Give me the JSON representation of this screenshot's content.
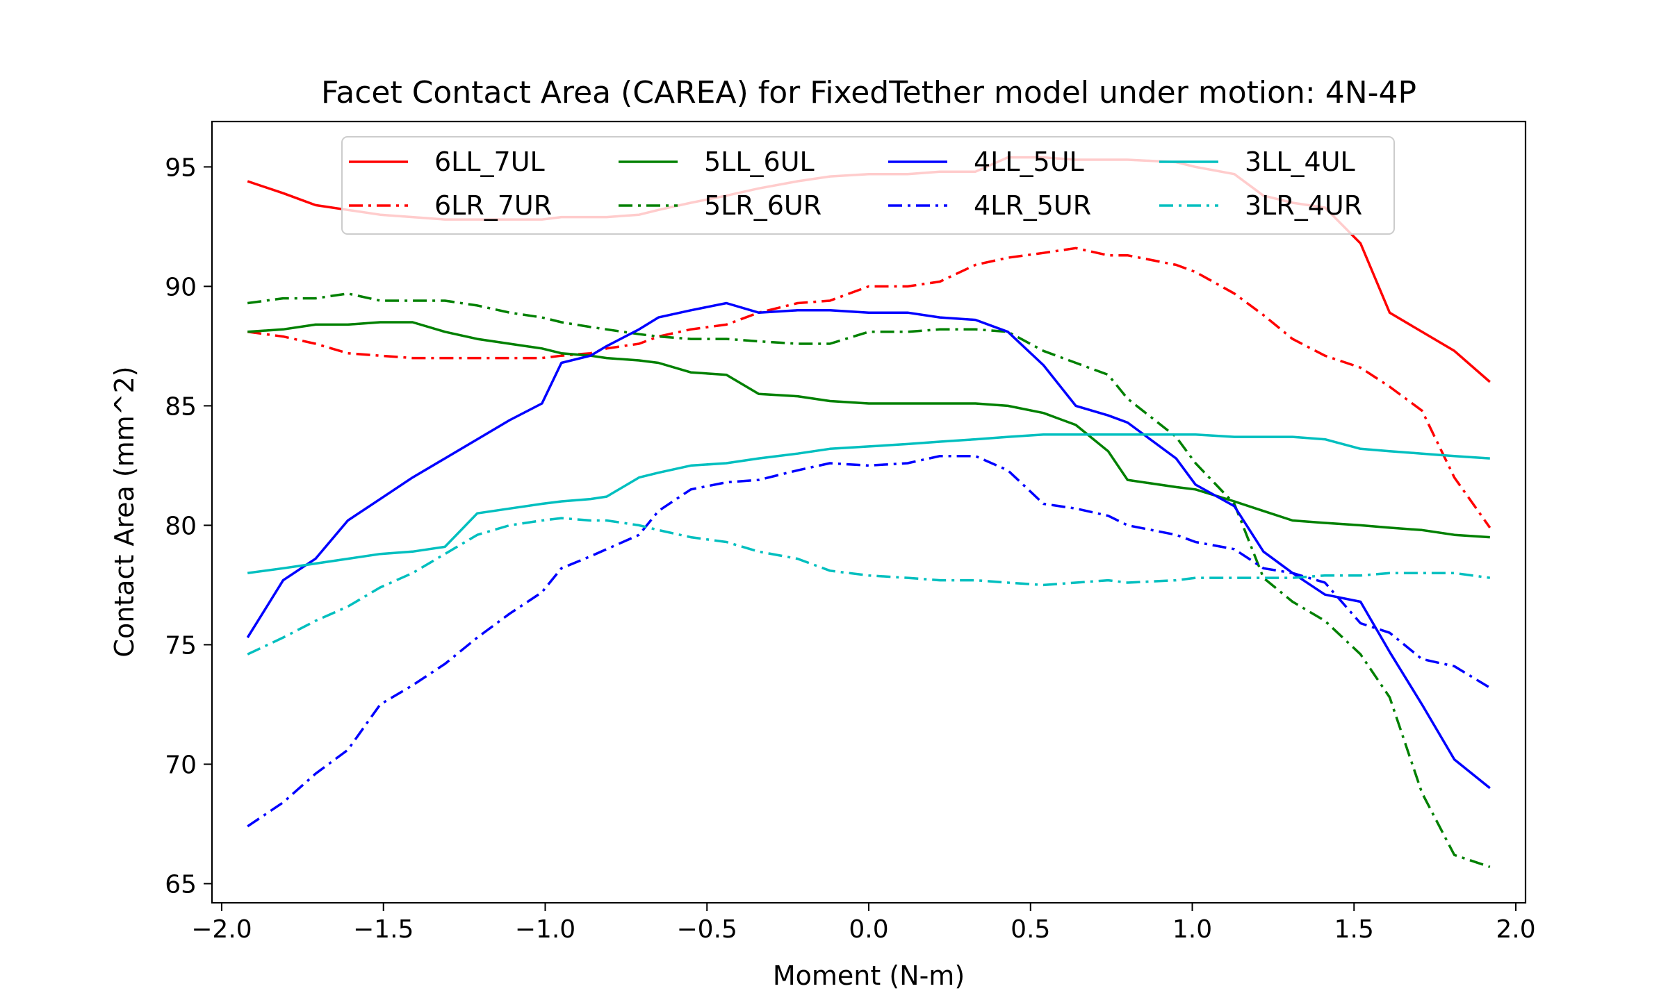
{
  "chart_data": {
    "type": "line",
    "title": "Facet Contact Area (CAREA) for FixedTether model under motion: 4N-4P",
    "xlabel": "Moment (N-m)",
    "ylabel": "Contact Area (mm^2)",
    "xlim": [
      -2.03,
      2.03
    ],
    "ylim": [
      64.2,
      96.9
    ],
    "xticks": [
      -2.0,
      -1.5,
      -1.0,
      -0.5,
      0.0,
      0.5,
      1.0,
      1.5,
      2.0
    ],
    "xtick_labels": [
      "−2.0",
      "−1.5",
      "−1.0",
      "−0.5",
      "0.0",
      "0.5",
      "1.0",
      "1.5",
      "2.0"
    ],
    "yticks": [
      65,
      70,
      75,
      80,
      85,
      90,
      95
    ],
    "ytick_labels": [
      "65",
      "70",
      "75",
      "80",
      "85",
      "90",
      "95"
    ],
    "grid": false,
    "legend": {
      "placement": "upper-center",
      "columns": 4
    },
    "x": [
      -1.92,
      -1.81,
      -1.71,
      -1.61,
      -1.51,
      -1.41,
      -1.31,
      -1.21,
      -1.11,
      -1.01,
      -0.95,
      -0.86,
      -0.81,
      -0.71,
      -0.65,
      -0.55,
      -0.44,
      -0.34,
      -0.22,
      -0.12,
      0.0,
      0.12,
      0.22,
      0.33,
      0.43,
      0.54,
      0.64,
      0.74,
      0.8,
      0.95,
      1.01,
      1.13,
      1.22,
      1.31,
      1.41,
      1.52,
      1.61,
      1.71,
      1.81,
      1.92
    ],
    "series": [
      {
        "name": "6LL_7UL",
        "color": "#ff0000",
        "dash": "solid",
        "values": [
          94.4,
          93.9,
          93.4,
          93.2,
          93.0,
          92.9,
          92.8,
          92.8,
          92.8,
          92.8,
          92.9,
          92.9,
          92.9,
          93.0,
          93.2,
          93.5,
          93.8,
          94.1,
          94.4,
          94.6,
          94.7,
          94.7,
          94.8,
          94.8,
          95.4,
          95.4,
          95.3,
          95.3,
          95.3,
          95.2,
          95.0,
          94.7,
          93.8,
          93.5,
          93.3,
          91.8,
          88.9,
          88.1,
          87.3,
          86.0
        ]
      },
      {
        "name": "6LR_7UR",
        "color": "#ff0000",
        "dash": "dashdot",
        "values": [
          88.1,
          87.9,
          87.6,
          87.2,
          87.1,
          87.0,
          87.0,
          87.0,
          87.0,
          87.0,
          87.1,
          87.2,
          87.4,
          87.6,
          87.9,
          88.2,
          88.4,
          88.9,
          89.3,
          89.4,
          90.0,
          90.0,
          90.2,
          90.9,
          91.2,
          91.4,
          91.6,
          91.3,
          91.3,
          90.9,
          90.6,
          89.7,
          88.8,
          87.8,
          87.1,
          86.6,
          85.8,
          84.8,
          82.0,
          79.9
        ]
      },
      {
        "name": "5LL_6UL",
        "color": "#008000",
        "dash": "solid",
        "values": [
          88.1,
          88.2,
          88.4,
          88.4,
          88.5,
          88.5,
          88.1,
          87.8,
          87.6,
          87.4,
          87.2,
          87.1,
          87.0,
          86.9,
          86.8,
          86.4,
          86.3,
          85.5,
          85.4,
          85.2,
          85.1,
          85.1,
          85.1,
          85.1,
          85.0,
          84.7,
          84.2,
          83.1,
          81.9,
          81.6,
          81.5,
          81.0,
          80.6,
          80.2,
          80.1,
          80.0,
          79.9,
          79.8,
          79.6,
          79.5
        ]
      },
      {
        "name": "5LR_6UR",
        "color": "#008000",
        "dash": "dashdot",
        "values": [
          89.3,
          89.5,
          89.5,
          89.7,
          89.4,
          89.4,
          89.4,
          89.2,
          88.9,
          88.7,
          88.5,
          88.3,
          88.2,
          88.0,
          87.9,
          87.8,
          87.8,
          87.7,
          87.6,
          87.6,
          88.1,
          88.1,
          88.2,
          88.2,
          88.1,
          87.3,
          86.8,
          86.3,
          85.3,
          83.7,
          82.6,
          80.9,
          77.8,
          76.8,
          76.0,
          74.6,
          72.8,
          68.8,
          66.2,
          65.7
        ]
      },
      {
        "name": "4LL_5UL",
        "color": "#0000ff",
        "dash": "solid",
        "values": [
          75.3,
          77.7,
          78.6,
          80.2,
          81.1,
          82.0,
          82.8,
          83.6,
          84.4,
          85.1,
          86.8,
          87.1,
          87.5,
          88.2,
          88.7,
          89.0,
          89.3,
          88.9,
          89.0,
          89.0,
          88.9,
          88.9,
          88.7,
          88.6,
          88.1,
          86.7,
          85.0,
          84.6,
          84.3,
          82.8,
          81.7,
          80.8,
          78.9,
          78.0,
          77.1,
          76.8,
          74.7,
          72.5,
          70.2,
          69.0
        ]
      },
      {
        "name": "4LR_5UR",
        "color": "#0000ff",
        "dash": "dashdot",
        "values": [
          67.4,
          68.4,
          69.6,
          70.6,
          72.5,
          73.3,
          74.2,
          75.3,
          76.3,
          77.2,
          78.2,
          78.7,
          79.0,
          79.6,
          80.6,
          81.5,
          81.8,
          81.9,
          82.3,
          82.6,
          82.5,
          82.6,
          82.9,
          82.9,
          82.3,
          80.9,
          80.7,
          80.4,
          80.0,
          79.6,
          79.3,
          79.0,
          78.2,
          78.0,
          77.6,
          75.9,
          75.5,
          74.4,
          74.1,
          73.2
        ]
      },
      {
        "name": "3LL_4UL",
        "color": "#00bfbf",
        "dash": "solid",
        "values": [
          78.0,
          78.2,
          78.4,
          78.6,
          78.8,
          78.9,
          79.1,
          80.5,
          80.7,
          80.9,
          81.0,
          81.1,
          81.2,
          82.0,
          82.2,
          82.5,
          82.6,
          82.8,
          83.0,
          83.2,
          83.3,
          83.4,
          83.5,
          83.6,
          83.7,
          83.8,
          83.8,
          83.8,
          83.8,
          83.8,
          83.8,
          83.7,
          83.7,
          83.7,
          83.6,
          83.2,
          83.1,
          83.0,
          82.9,
          82.8
        ]
      },
      {
        "name": "3LR_4UR",
        "color": "#00bfbf",
        "dash": "dashdot",
        "values": [
          74.6,
          75.3,
          76.0,
          76.6,
          77.4,
          78.0,
          78.8,
          79.6,
          80.0,
          80.2,
          80.3,
          80.2,
          80.2,
          80.0,
          79.8,
          79.5,
          79.3,
          78.9,
          78.6,
          78.1,
          77.9,
          77.8,
          77.7,
          77.7,
          77.6,
          77.5,
          77.6,
          77.7,
          77.6,
          77.7,
          77.8,
          77.8,
          77.8,
          77.8,
          77.9,
          77.9,
          78.0,
          78.0,
          78.0,
          77.8
        ]
      }
    ]
  }
}
